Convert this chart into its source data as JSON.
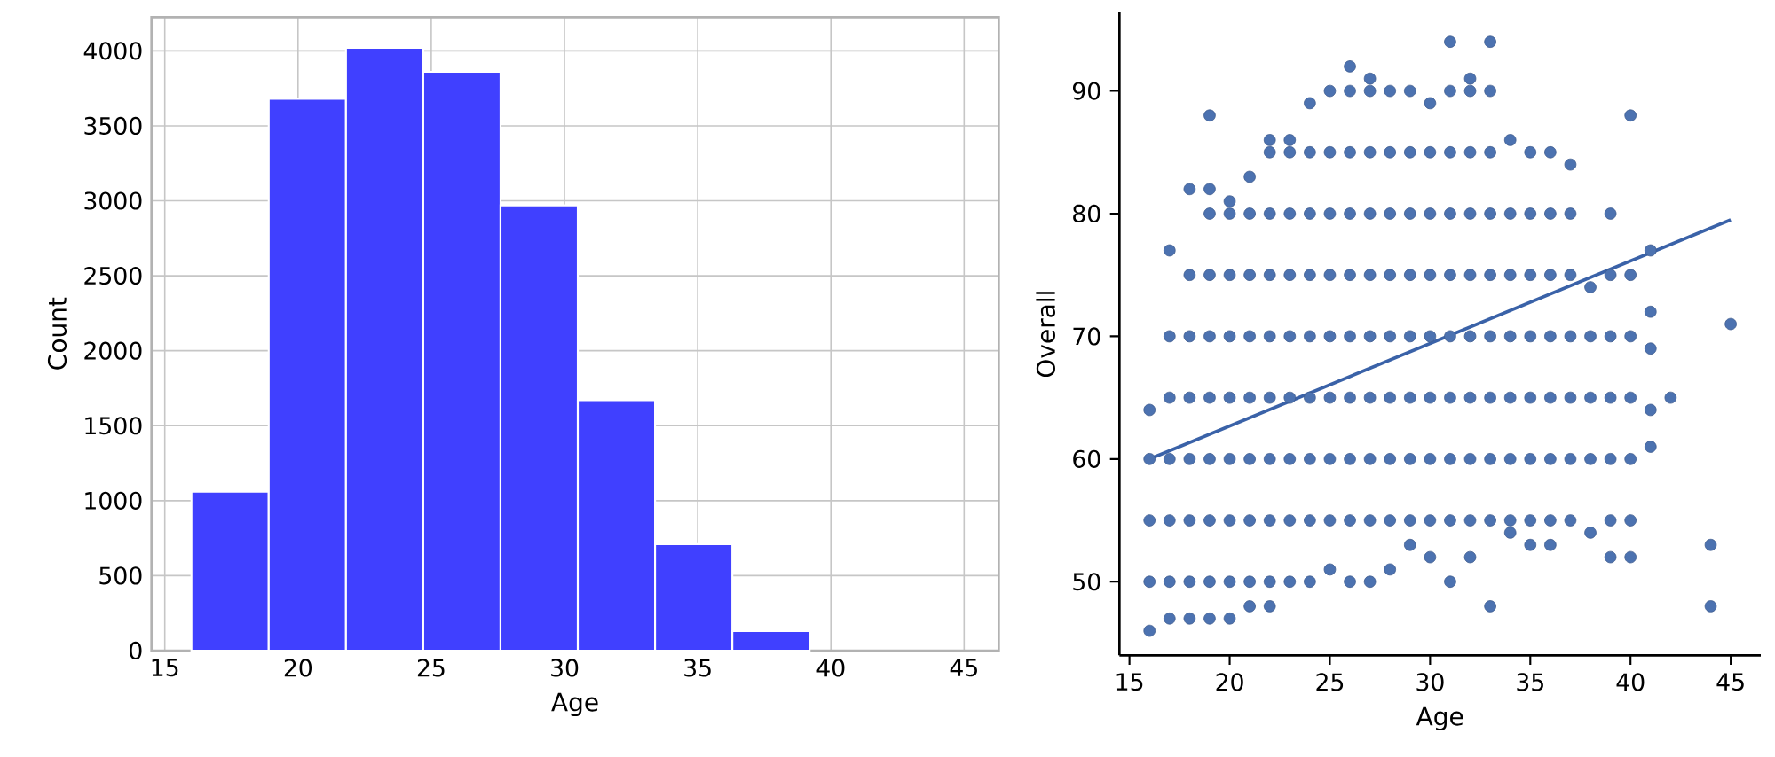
{
  "chart_data": [
    {
      "type": "histogram",
      "xlabel": "Age",
      "ylabel": "Count",
      "color": "#4040ff",
      "bins": [
        16,
        18.9,
        21.8,
        24.7,
        27.6,
        30.5,
        33.4,
        36.3,
        39.2,
        42.1,
        45
      ],
      "values": [
        1060,
        3680,
        4020,
        3860,
        2970,
        1670,
        710,
        130,
        0,
        0
      ],
      "xlim": [
        14.5,
        46.3
      ],
      "ylim": [
        0,
        4225
      ],
      "xticks": [
        15,
        20,
        25,
        30,
        35,
        40,
        45
      ],
      "yticks": [
        0,
        500,
        1000,
        1500,
        2000,
        2500,
        3000,
        3500,
        4000
      ],
      "grid": true
    },
    {
      "type": "scatter",
      "xlabel": "Age",
      "ylabel": "Overall",
      "marker": "circle",
      "xlim": [
        14.5,
        46.5
      ],
      "ylim": [
        44,
        96.4
      ],
      "xticks": [
        15,
        20,
        25,
        30,
        35,
        40,
        45
      ],
      "yticks": [
        50,
        60,
        70,
        80,
        90
      ],
      "series": [
        {
          "type": "scatter",
          "color": "#4c72b0",
          "x": [
            16,
            16,
            16,
            16,
            16,
            17,
            17,
            17,
            17,
            17,
            17,
            17,
            18,
            18,
            18,
            18,
            18,
            18,
            18,
            18,
            19,
            19,
            19,
            19,
            19,
            19,
            19,
            19,
            19,
            19,
            20,
            20,
            20,
            20,
            20,
            20,
            20,
            20,
            20,
            21,
            21,
            21,
            21,
            21,
            21,
            21,
            21,
            21,
            22,
            22,
            22,
            22,
            22,
            22,
            22,
            22,
            22,
            22,
            23,
            23,
            23,
            23,
            23,
            23,
            23,
            23,
            23,
            24,
            24,
            24,
            24,
            24,
            24,
            24,
            24,
            24,
            25,
            25,
            25,
            25,
            25,
            25,
            25,
            25,
            25,
            26,
            26,
            26,
            26,
            26,
            26,
            26,
            26,
            26,
            26,
            27,
            27,
            27,
            27,
            27,
            27,
            27,
            27,
            27,
            27,
            28,
            28,
            28,
            28,
            28,
            28,
            28,
            28,
            28,
            29,
            29,
            29,
            29,
            29,
            29,
            29,
            29,
            29,
            30,
            30,
            30,
            30,
            30,
            30,
            30,
            30,
            30,
            31,
            31,
            31,
            31,
            31,
            31,
            31,
            31,
            31,
            31,
            32,
            32,
            32,
            32,
            32,
            32,
            32,
            32,
            32,
            32,
            33,
            33,
            33,
            33,
            33,
            33,
            33,
            33,
            33,
            33,
            34,
            34,
            34,
            34,
            34,
            34,
            34,
            34,
            35,
            35,
            35,
            35,
            35,
            35,
            35,
            35,
            36,
            36,
            36,
            36,
            36,
            36,
            36,
            36,
            37,
            37,
            37,
            37,
            37,
            37,
            37,
            38,
            38,
            38,
            38,
            38,
            39,
            39,
            39,
            39,
            39,
            39,
            39,
            40,
            40,
            40,
            40,
            40,
            40,
            40,
            41,
            41,
            41,
            41,
            41,
            42,
            44,
            44,
            45
          ],
          "values": [
            46,
            50,
            55,
            60,
            64,
            47,
            50,
            55,
            60,
            65,
            70,
            77,
            47,
            50,
            55,
            60,
            65,
            70,
            75,
            82,
            47,
            50,
            55,
            60,
            65,
            70,
            75,
            80,
            82,
            88,
            47,
            50,
            55,
            60,
            65,
            70,
            75,
            80,
            81,
            48,
            50,
            55,
            60,
            65,
            70,
            75,
            80,
            83,
            48,
            50,
            55,
            60,
            65,
            70,
            75,
            80,
            85,
            86,
            50,
            55,
            60,
            65,
            70,
            75,
            80,
            85,
            86,
            50,
            55,
            60,
            65,
            70,
            75,
            80,
            85,
            89,
            51,
            55,
            60,
            65,
            70,
            75,
            80,
            85,
            90,
            50,
            55,
            60,
            65,
            70,
            75,
            80,
            85,
            90,
            92,
            50,
            55,
            60,
            65,
            70,
            75,
            80,
            85,
            90,
            91,
            51,
            55,
            60,
            65,
            70,
            75,
            80,
            85,
            90,
            53,
            55,
            60,
            65,
            70,
            75,
            80,
            85,
            90,
            52,
            55,
            60,
            65,
            70,
            75,
            80,
            85,
            89,
            50,
            55,
            60,
            65,
            70,
            75,
            80,
            85,
            90,
            94,
            52,
            55,
            60,
            65,
            70,
            75,
            80,
            85,
            90,
            91,
            48,
            55,
            60,
            65,
            70,
            75,
            80,
            85,
            90,
            94,
            54,
            55,
            60,
            65,
            70,
            75,
            80,
            86,
            53,
            55,
            60,
            65,
            70,
            75,
            80,
            85,
            53,
            55,
            60,
            65,
            70,
            75,
            80,
            85,
            55,
            60,
            65,
            70,
            75,
            80,
            84,
            54,
            60,
            65,
            70,
            74,
            52,
            55,
            60,
            65,
            70,
            75,
            80,
            52,
            55,
            60,
            65,
            70,
            75,
            88,
            61,
            64,
            69,
            72,
            77,
            65,
            48,
            53,
            71
          ]
        },
        {
          "type": "line",
          "marker": "none",
          "color": "#3a62a8",
          "x": [
            16,
            45
          ],
          "values": [
            60,
            79.5
          ]
        }
      ]
    }
  ]
}
